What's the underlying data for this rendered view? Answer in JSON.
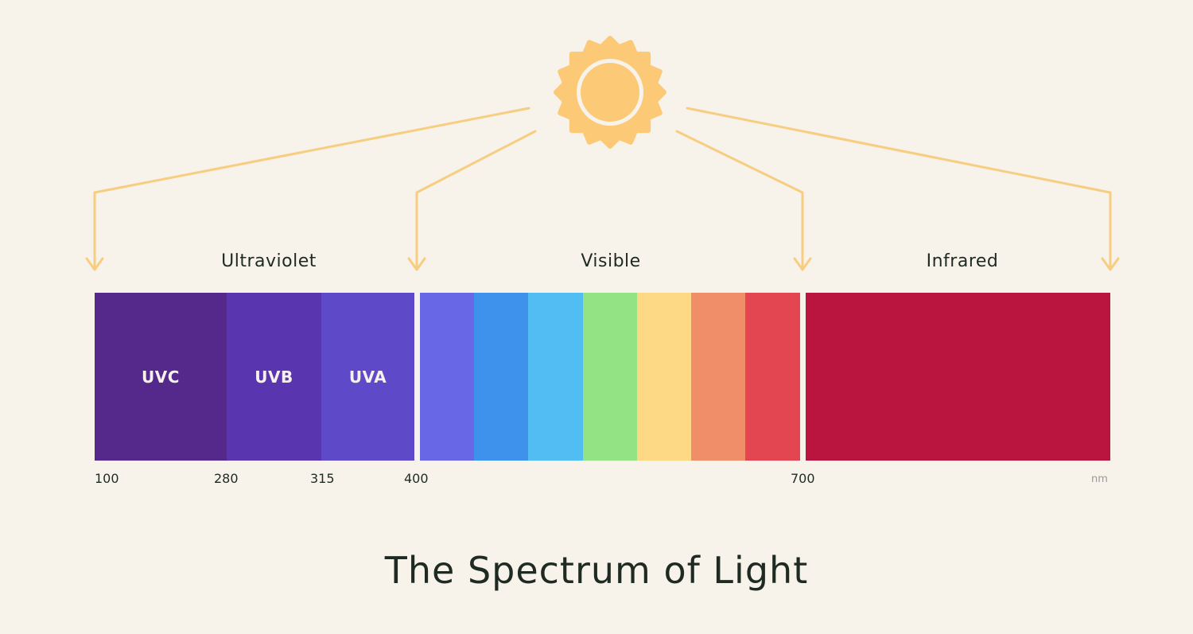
{
  "title": "The Spectrum of Light",
  "colors": {
    "background": "#f7f3ea",
    "sun": "#fcc977",
    "arrow": "#f7cd82",
    "text": "#1f2a22",
    "unit_text": "#9a9a9a",
    "band_text": "#f6f1ea"
  },
  "regions": [
    {
      "label": "Ultraviolet"
    },
    {
      "label": "Visible"
    },
    {
      "label": "Infrared"
    }
  ],
  "bands": [
    {
      "label": "UVC",
      "color": "#55298c",
      "from": 100,
      "to": 280
    },
    {
      "label": "UVB",
      "color": "#5935b0",
      "from": 280,
      "to": 315
    },
    {
      "label": "UVA",
      "color": "#5e49c9",
      "from": 315,
      "to": 400
    },
    {
      "label": "",
      "color": "#6868e6"
    },
    {
      "label": "",
      "color": "#3f92eb"
    },
    {
      "label": "",
      "color": "#52bdf2"
    },
    {
      "label": "",
      "color": "#93e283"
    },
    {
      "label": "",
      "color": "#fed985"
    },
    {
      "label": "",
      "color": "#f18e6a"
    },
    {
      "label": "",
      "color": "#e44651"
    },
    {
      "label": "",
      "color": "#ba153e"
    }
  ],
  "ticks": [
    "100",
    "280",
    "315",
    "400",
    "700"
  ],
  "unit": "nm",
  "icons": {
    "sun": "sun-icon",
    "arrow": "arrow-down-icon"
  }
}
